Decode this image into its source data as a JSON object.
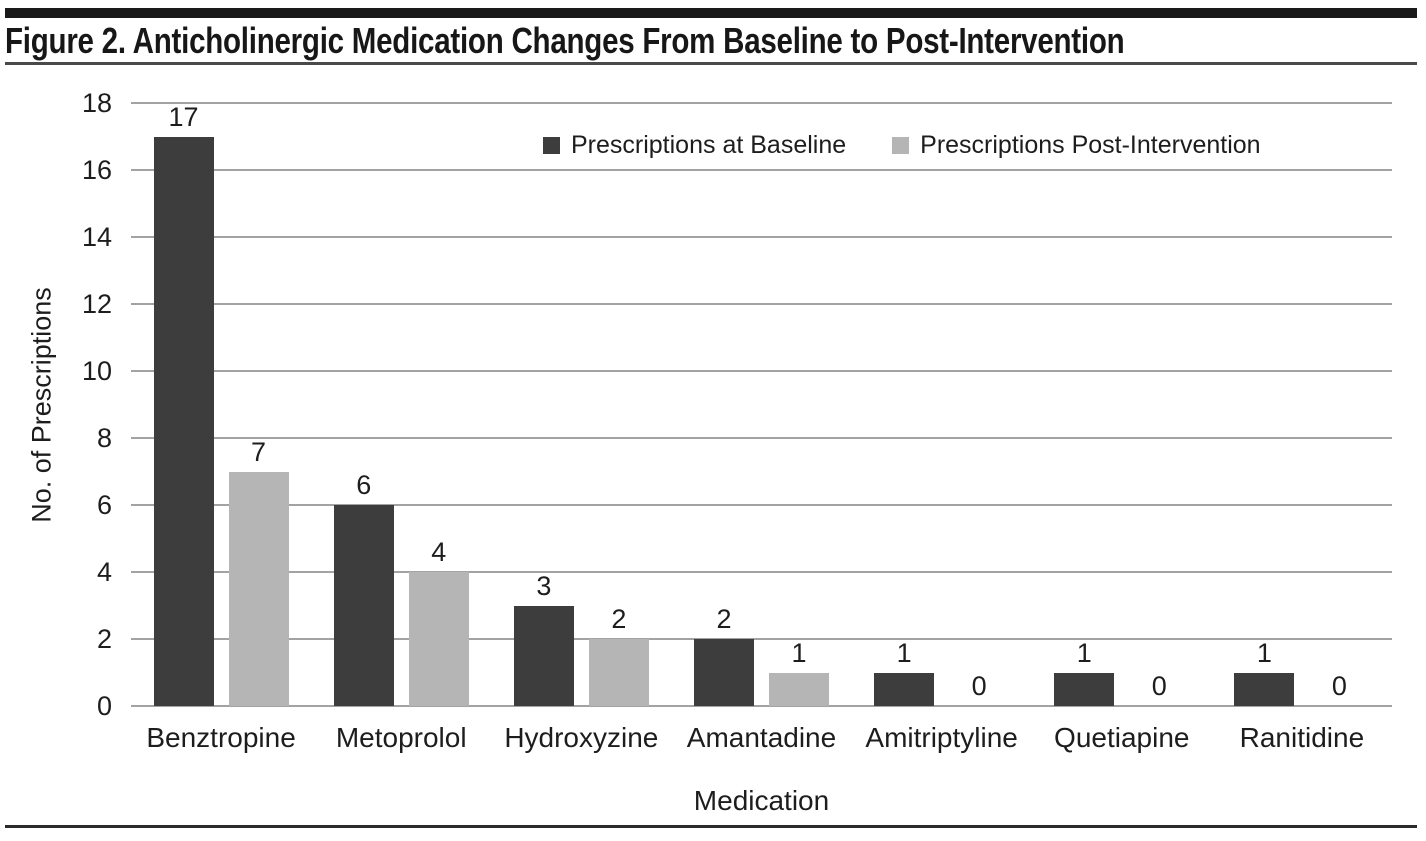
{
  "figure": {
    "title": "Figure 2. Anticholinergic Medication Changes From Baseline to Post-Intervention"
  },
  "chart_data": {
    "type": "bar",
    "title": "Figure 2. Anticholinergic Medication Changes From Baseline to Post-Intervention",
    "categories": [
      "Benztropine",
      "Metoprolol",
      "Hydroxyzine",
      "Amantadine",
      "Amitriptyline",
      "Quetiapine",
      "Ranitidine"
    ],
    "series": [
      {
        "name": "Prescriptions at Baseline",
        "color": "#3d3d3d",
        "values": [
          17,
          6,
          3,
          2,
          1,
          1,
          1
        ]
      },
      {
        "name": "Prescriptions Post-Intervention",
        "color": "#b5b5b5",
        "values": [
          7,
          4,
          2,
          1,
          0,
          0,
          0
        ]
      }
    ],
    "xlabel": "Medication",
    "ylabel": "No. of Prescriptions",
    "ylim": [
      0,
      18
    ],
    "yticks": [
      0,
      2,
      4,
      6,
      8,
      10,
      12,
      14,
      16,
      18
    ],
    "grid": "horizontal",
    "gridline_color": "#a3a3a3",
    "legend_position": "top-inside",
    "bar_value_labels": true
  }
}
